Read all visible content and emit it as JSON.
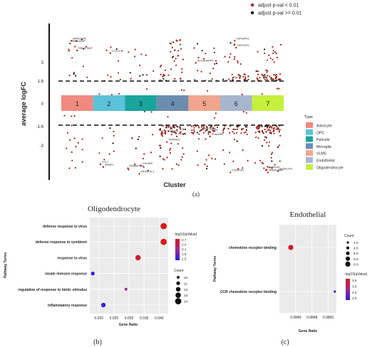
{
  "panel_a": {
    "label": "(a)",
    "legend": [
      {
        "label": "adjust p-val < 0.01",
        "color": "#a0241c"
      },
      {
        "label": "adjust p-val >= 0.01",
        "color": "#111111"
      }
    ],
    "chart_data": {
      "type": "scatter",
      "title": "",
      "xlabel": "Cluster",
      "ylabel": "average logFC",
      "y_ticks": [
        "3",
        "1.6",
        "0",
        "-1.6",
        "-3"
      ],
      "thresholds": [
        1.6,
        -1.6
      ],
      "clusters": [
        {
          "id": "1",
          "color": "#f08a7e"
        },
        {
          "id": "2",
          "color": "#5bc2d9"
        },
        {
          "id": "3",
          "color": "#19a49c"
        },
        {
          "id": "4",
          "color": "#6c8db0"
        },
        {
          "id": "5",
          "color": "#f2a58e"
        },
        {
          "id": "6",
          "color": "#a7b6ce"
        },
        {
          "id": "7",
          "color": "#c6ef3e"
        }
      ],
      "cluster_type_legend": {
        "title": "Type",
        "entries": [
          {
            "label": "Astrocyte",
            "color": "#f08a7e"
          },
          {
            "label": "OPC",
            "color": "#5bc2d9"
          },
          {
            "label": "Pericyte",
            "color": "#19a49c"
          },
          {
            "label": "Microglia",
            "color": "#6c8db0"
          },
          {
            "label": "VLMC",
            "color": "#f2a58e"
          },
          {
            "label": "Endothelial",
            "color": "#a7b6ce"
          },
          {
            "label": "Oligodendrocyte",
            "color": "#c6ef3e"
          }
        ]
      },
      "gene_labels": [
        {
          "text": "MRPS16P2",
          "cluster": 1,
          "y": 4.6
        },
        {
          "text": "RNU6-512P",
          "cluster": 1,
          "y": 4.4
        },
        {
          "text": "RNU6-781P",
          "cluster": 1,
          "y": 3.9
        },
        {
          "text": "CYLC2",
          "cluster": 2,
          "y": 3.7
        },
        {
          "text": "SLC4A1APP2",
          "cluster": 5,
          "y": 3.0
        },
        {
          "text": "CSPG4P11",
          "cluster": 6,
          "y": 4.6
        },
        {
          "text": "DEGS1P1",
          "cluster": 6,
          "y": 4.1
        },
        {
          "text": "CCL7",
          "cluster": 2,
          "y": -4.3
        },
        {
          "text": "SRMP1",
          "cluster": 2,
          "y": -4.5
        },
        {
          "text": "RNA5SP192",
          "cluster": 3,
          "y": -4.6
        },
        {
          "text": "C11orf42",
          "cluster": 3,
          "y": -4.4
        },
        {
          "text": "KRTAP19-2",
          "cluster": 3,
          "y": -5.0
        },
        {
          "text": "TEKT4P2",
          "cluster": 4,
          "y": -2.1
        },
        {
          "text": "CYTL1",
          "cluster": 4,
          "y": -2.3
        },
        {
          "text": "TSPAN15",
          "cluster": 4,
          "y": -2.7
        },
        {
          "text": "RNA5-8SN4",
          "cluster": 5,
          "y": -1.9
        },
        {
          "text": "TKTP1",
          "cluster": 5,
          "y": -2.0
        },
        {
          "text": "PLA2G4B",
          "cluster": 5,
          "y": -2.3
        },
        {
          "text": "C20orf141",
          "cluster": 6,
          "y": -4.9
        },
        {
          "text": "USP9YP5",
          "cluster": 7,
          "y": -4.7
        },
        {
          "text": "SH3GL1P3",
          "cluster": 7,
          "y": -4.8
        },
        {
          "text": "RNU6-389P",
          "cluster": 7,
          "y": -4.9
        }
      ]
    }
  },
  "panel_b": {
    "label": "(b)",
    "chart_data": {
      "type": "scatter",
      "title": "Oligodendrocyte",
      "xlabel": "Gene Ratio",
      "ylabel": "Pathway Terms",
      "x_ticks": [
        "0.020",
        "0.025",
        "0.030",
        "0.035",
        "0.040"
      ],
      "xlim": [
        0.017,
        0.043
      ],
      "color_legend": {
        "title": "-log10(qValue)",
        "ticks": [
          "2.7",
          "2.4",
          "2.1",
          "1.8",
          "1.5"
        ]
      },
      "size_legend": {
        "title": "Count",
        "ticks": [
          "10",
          "11",
          "12",
          "13",
          "14"
        ]
      },
      "points": [
        {
          "term": "defense response to virus",
          "gene_ratio": 0.0415,
          "count": 14,
          "neg_log10_q": 2.7
        },
        {
          "term": "defense response to symbiont",
          "gene_ratio": 0.0415,
          "count": 14,
          "neg_log10_q": 2.7
        },
        {
          "term": "response to virus",
          "gene_ratio": 0.033,
          "count": 13,
          "neg_log10_q": 2.55
        },
        {
          "term": "innate immune response",
          "gene_ratio": 0.018,
          "count": 11,
          "neg_log10_q": 1.5
        },
        {
          "term": "regulation of response to biotic stimulus",
          "gene_ratio": 0.029,
          "count": 10,
          "neg_log10_q": 2.1
        },
        {
          "term": "inflammatory response",
          "gene_ratio": 0.0215,
          "count": 12,
          "neg_log10_q": 1.6
        }
      ]
    }
  },
  "panel_c": {
    "label": "(c)",
    "chart_data": {
      "type": "scatter",
      "title": "Endothelial",
      "xlabel": "Gene Ratio",
      "ylabel": "Pathway Terms",
      "x_ticks": [
        "0.0846",
        "0.0848",
        "0.0850"
      ],
      "xlim": [
        0.0844,
        0.0851
      ],
      "size_legend": {
        "title": "Count",
        "ticks": [
          "4.0",
          "4.5",
          "5.0",
          "5.5",
          "6.0"
        ]
      },
      "color_legend": {
        "title": "-log10(qValue)",
        "ticks": [
          "3.5",
          "3.0",
          "2.5",
          "2.0"
        ]
      },
      "points": [
        {
          "term": "chemokine receptor binding",
          "gene_ratio": 0.08454,
          "count": 6,
          "neg_log10_q": 3.6
        },
        {
          "term": "CCR chemokine receptor binding",
          "gene_ratio": 0.08508,
          "count": 4,
          "neg_log10_q": 1.9
        }
      ]
    }
  }
}
